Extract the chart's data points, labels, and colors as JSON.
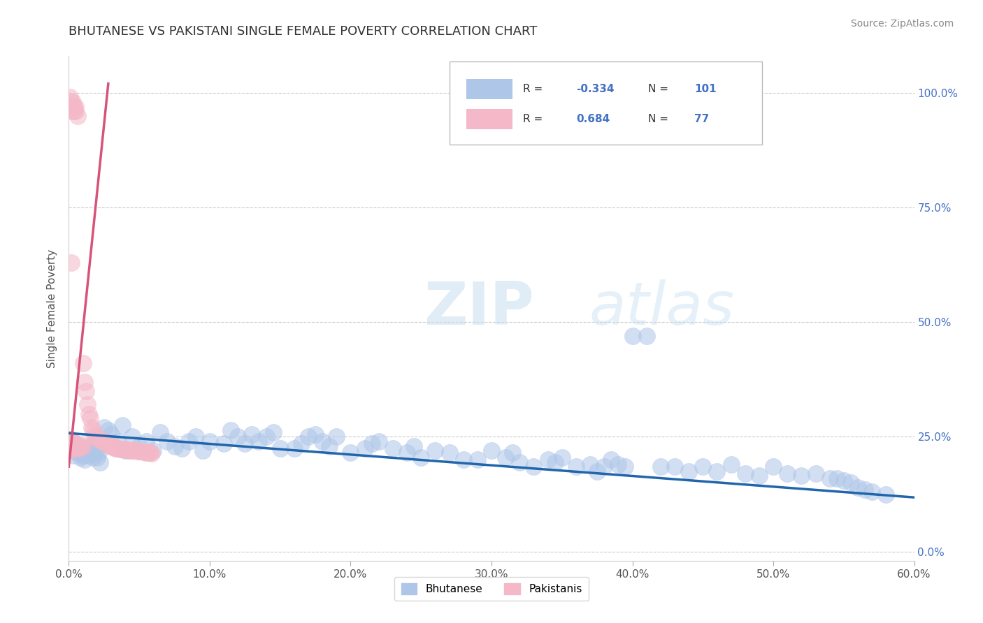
{
  "title": "BHUTANESE VS PAKISTANI SINGLE FEMALE POVERTY CORRELATION CHART",
  "source": "Source: ZipAtlas.com",
  "ylabel": "Single Female Poverty",
  "yticks": [
    "0.0%",
    "25.0%",
    "50.0%",
    "75.0%",
    "100.0%"
  ],
  "ytick_vals": [
    0.0,
    0.25,
    0.5,
    0.75,
    1.0
  ],
  "xtick_vals": [
    0.0,
    0.1,
    0.2,
    0.3,
    0.4,
    0.5,
    0.6
  ],
  "xtick_labels": [
    "0.0%",
    "10.0%",
    "20.0%",
    "30.0%",
    "40.0%",
    "50.0%",
    "60.0%"
  ],
  "xmin": 0.0,
  "xmax": 0.6,
  "ymin": -0.02,
  "ymax": 1.08,
  "blue_color": "#aec6e8",
  "pink_color": "#f4b8c8",
  "blue_line_color": "#2166ac",
  "pink_line_color": "#d6537a",
  "watermark_zip": "ZIP",
  "watermark_atlas": "atlas",
  "background_color": "#ffffff",
  "grid_color": "#cccccc",
  "title_color": "#333333",
  "axis_label_color": "#555555",
  "right_label_color": "#4472c4",
  "blue_scatter": [
    [
      0.001,
      0.245
    ],
    [
      0.002,
      0.23
    ],
    [
      0.003,
      0.22
    ],
    [
      0.004,
      0.21
    ],
    [
      0.005,
      0.235
    ],
    [
      0.006,
      0.215
    ],
    [
      0.007,
      0.225
    ],
    [
      0.008,
      0.205
    ],
    [
      0.009,
      0.215
    ],
    [
      0.01,
      0.21
    ],
    [
      0.011,
      0.2
    ],
    [
      0.012,
      0.225
    ],
    [
      0.013,
      0.215
    ],
    [
      0.014,
      0.21
    ],
    [
      0.015,
      0.23
    ],
    [
      0.016,
      0.225
    ],
    [
      0.017,
      0.205
    ],
    [
      0.018,
      0.215
    ],
    [
      0.019,
      0.22
    ],
    [
      0.02,
      0.205
    ],
    [
      0.021,
      0.215
    ],
    [
      0.022,
      0.195
    ],
    [
      0.025,
      0.27
    ],
    [
      0.028,
      0.265
    ],
    [
      0.03,
      0.255
    ],
    [
      0.035,
      0.24
    ],
    [
      0.038,
      0.275
    ],
    [
      0.04,
      0.22
    ],
    [
      0.045,
      0.25
    ],
    [
      0.05,
      0.23
    ],
    [
      0.055,
      0.24
    ],
    [
      0.06,
      0.22
    ],
    [
      0.065,
      0.26
    ],
    [
      0.07,
      0.24
    ],
    [
      0.075,
      0.23
    ],
    [
      0.08,
      0.225
    ],
    [
      0.085,
      0.24
    ],
    [
      0.09,
      0.25
    ],
    [
      0.095,
      0.22
    ],
    [
      0.1,
      0.24
    ],
    [
      0.11,
      0.235
    ],
    [
      0.115,
      0.265
    ],
    [
      0.12,
      0.25
    ],
    [
      0.125,
      0.235
    ],
    [
      0.13,
      0.255
    ],
    [
      0.135,
      0.24
    ],
    [
      0.14,
      0.25
    ],
    [
      0.145,
      0.26
    ],
    [
      0.15,
      0.225
    ],
    [
      0.16,
      0.225
    ],
    [
      0.165,
      0.235
    ],
    [
      0.17,
      0.25
    ],
    [
      0.175,
      0.255
    ],
    [
      0.18,
      0.24
    ],
    [
      0.185,
      0.23
    ],
    [
      0.19,
      0.25
    ],
    [
      0.2,
      0.215
    ],
    [
      0.21,
      0.225
    ],
    [
      0.215,
      0.235
    ],
    [
      0.22,
      0.24
    ],
    [
      0.23,
      0.225
    ],
    [
      0.24,
      0.215
    ],
    [
      0.245,
      0.23
    ],
    [
      0.25,
      0.205
    ],
    [
      0.26,
      0.22
    ],
    [
      0.27,
      0.215
    ],
    [
      0.28,
      0.2
    ],
    [
      0.29,
      0.2
    ],
    [
      0.3,
      0.22
    ],
    [
      0.31,
      0.205
    ],
    [
      0.315,
      0.215
    ],
    [
      0.32,
      0.195
    ],
    [
      0.33,
      0.185
    ],
    [
      0.34,
      0.2
    ],
    [
      0.345,
      0.195
    ],
    [
      0.35,
      0.205
    ],
    [
      0.36,
      0.185
    ],
    [
      0.37,
      0.19
    ],
    [
      0.375,
      0.175
    ],
    [
      0.38,
      0.185
    ],
    [
      0.385,
      0.2
    ],
    [
      0.39,
      0.19
    ],
    [
      0.395,
      0.185
    ],
    [
      0.4,
      0.47
    ],
    [
      0.41,
      0.47
    ],
    [
      0.42,
      0.185
    ],
    [
      0.43,
      0.185
    ],
    [
      0.44,
      0.175
    ],
    [
      0.45,
      0.185
    ],
    [
      0.46,
      0.175
    ],
    [
      0.47,
      0.19
    ],
    [
      0.48,
      0.17
    ],
    [
      0.49,
      0.165
    ],
    [
      0.5,
      0.185
    ],
    [
      0.51,
      0.17
    ],
    [
      0.52,
      0.165
    ],
    [
      0.53,
      0.17
    ],
    [
      0.54,
      0.16
    ],
    [
      0.545,
      0.16
    ],
    [
      0.55,
      0.155
    ],
    [
      0.555,
      0.15
    ],
    [
      0.56,
      0.14
    ],
    [
      0.565,
      0.135
    ],
    [
      0.57,
      0.13
    ],
    [
      0.58,
      0.125
    ]
  ],
  "pink_scatter": [
    [
      0.001,
      0.99
    ],
    [
      0.001,
      0.97
    ],
    [
      0.002,
      0.98
    ],
    [
      0.002,
      0.96
    ],
    [
      0.003,
      0.97
    ],
    [
      0.003,
      0.98
    ],
    [
      0.004,
      0.97
    ],
    [
      0.004,
      0.96
    ],
    [
      0.005,
      0.96
    ],
    [
      0.005,
      0.97
    ],
    [
      0.006,
      0.95
    ],
    [
      0.002,
      0.63
    ],
    [
      0.01,
      0.41
    ],
    [
      0.011,
      0.37
    ],
    [
      0.012,
      0.35
    ],
    [
      0.013,
      0.32
    ],
    [
      0.014,
      0.3
    ],
    [
      0.015,
      0.29
    ],
    [
      0.016,
      0.27
    ],
    [
      0.017,
      0.265
    ],
    [
      0.018,
      0.255
    ],
    [
      0.019,
      0.25
    ],
    [
      0.02,
      0.248
    ],
    [
      0.021,
      0.245
    ],
    [
      0.022,
      0.243
    ],
    [
      0.023,
      0.242
    ],
    [
      0.024,
      0.24
    ],
    [
      0.025,
      0.238
    ],
    [
      0.026,
      0.237
    ],
    [
      0.027,
      0.235
    ],
    [
      0.028,
      0.233
    ],
    [
      0.029,
      0.232
    ],
    [
      0.03,
      0.23
    ],
    [
      0.031,
      0.228
    ],
    [
      0.032,
      0.228
    ],
    [
      0.033,
      0.225
    ],
    [
      0.034,
      0.225
    ],
    [
      0.035,
      0.225
    ],
    [
      0.036,
      0.224
    ],
    [
      0.037,
      0.224
    ],
    [
      0.038,
      0.223
    ],
    [
      0.039,
      0.223
    ],
    [
      0.04,
      0.222
    ],
    [
      0.041,
      0.222
    ],
    [
      0.042,
      0.222
    ],
    [
      0.043,
      0.221
    ],
    [
      0.044,
      0.221
    ],
    [
      0.045,
      0.221
    ],
    [
      0.046,
      0.22
    ],
    [
      0.047,
      0.22
    ],
    [
      0.048,
      0.22
    ],
    [
      0.049,
      0.219
    ],
    [
      0.05,
      0.219
    ],
    [
      0.051,
      0.218
    ],
    [
      0.052,
      0.218
    ],
    [
      0.053,
      0.217
    ],
    [
      0.054,
      0.217
    ],
    [
      0.055,
      0.216
    ],
    [
      0.056,
      0.216
    ],
    [
      0.057,
      0.215
    ],
    [
      0.058,
      0.215
    ],
    [
      0.059,
      0.214
    ],
    [
      0.001,
      0.245
    ],
    [
      0.001,
      0.235
    ],
    [
      0.001,
      0.225
    ],
    [
      0.001,
      0.22
    ],
    [
      0.002,
      0.245
    ],
    [
      0.002,
      0.235
    ],
    [
      0.002,
      0.225
    ],
    [
      0.003,
      0.24
    ],
    [
      0.003,
      0.23
    ],
    [
      0.004,
      0.235
    ],
    [
      0.005,
      0.23
    ],
    [
      0.006,
      0.225
    ],
    [
      0.007,
      0.225
    ],
    [
      0.008,
      0.228
    ],
    [
      0.009,
      0.232
    ],
    [
      0.01,
      0.23
    ]
  ],
  "blue_trend_x": [
    0.0,
    0.6
  ],
  "blue_trend_y": [
    0.258,
    0.118
  ],
  "pink_trend_x": [
    0.0,
    0.028
  ],
  "pink_trend_y": [
    0.185,
    1.02
  ]
}
